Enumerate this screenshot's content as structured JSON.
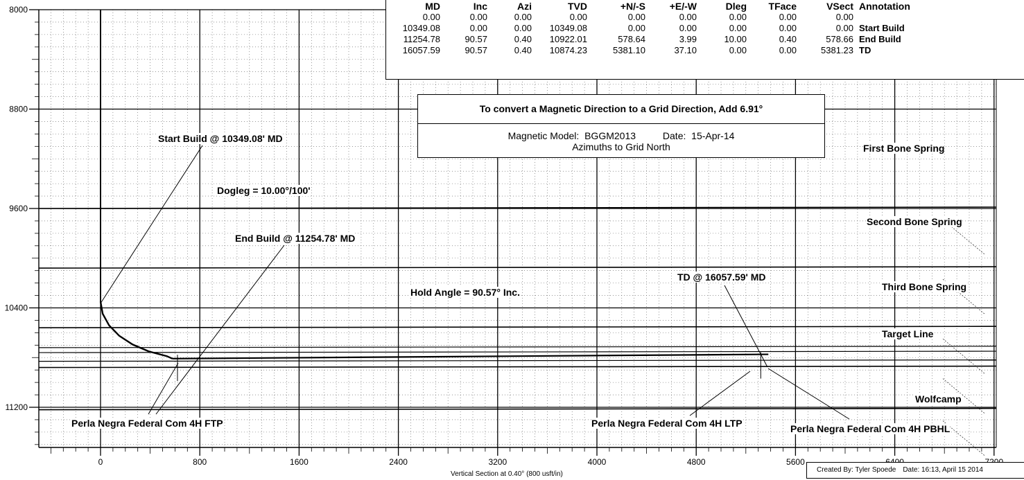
{
  "chart_data": {
    "type": "line",
    "xlabel": "Vertical Section at 0.40° (800 usft/in)",
    "ylabel": "",
    "xlim": [
      -800,
      7400
    ],
    "ylim": [
      8000,
      11500
    ],
    "x_ticks": [
      0,
      800,
      1600,
      2400,
      3200,
      4000,
      4800,
      5600,
      6400,
      7200
    ],
    "y_ticks": [
      8000,
      8800,
      9600,
      10400,
      11200
    ],
    "y_inverted": true,
    "grid": true,
    "series": [
      {
        "values": [
          {
            "x": 0,
            "y": 10349.08
          },
          {
            "x": 17.5,
            "y": 10447.5
          },
          {
            "x": 68.6,
            "y": 10540.4
          },
          {
            "x": 150.3,
            "y": 10624.1
          },
          {
            "x": 258.9,
            "y": 10695.1
          },
          {
            "x": 389.2,
            "y": 10750.6
          },
          {
            "x": 534.8,
            "y": 10788.5
          },
          {
            "x": 578.66,
            "y": 10922.01
          }
        ]
      },
      {
        "values": [
          {
            "x": 578.66,
            "y": 10922.01
          },
          {
            "x": 5381.23,
            "y": 10874.23
          }
        ]
      }
    ],
    "formations": [
      {
        "name": "First Bone Spring",
        "tvd": 9600
      },
      {
        "name": "Second Bone Spring",
        "tvd": 10080
      },
      {
        "name": "Third Bone Spring",
        "tvd": 10560
      },
      {
        "name": "Target Line",
        "tvd": 10880
      },
      {
        "name": "Wolfcamp",
        "tvd": 11220
      }
    ],
    "annotations": [
      {
        "text": "Start Build @ 10349.08' MD",
        "x": 0,
        "y": 10349.08
      },
      {
        "text": "Dogleg = 10.00°/100'"
      },
      {
        "text": "End Build @ 11254.78' MD",
        "x": 578.66,
        "y": 10922.01
      },
      {
        "text": "Hold Angle = 90.57° Inc."
      },
      {
        "text": "TD @ 16057.59' MD",
        "x": 5381.23,
        "y": 10874.23
      },
      {
        "text": "Perla Negra Federal Com 4H FTP",
        "x": 620,
        "y": 10900
      },
      {
        "text": "Perla Negra Federal Com 4H LTP",
        "x": 5320,
        "y": 10880
      },
      {
        "text": "Perla Negra Federal Com 4H PBHL",
        "x": 5381.23,
        "y": 10874.23
      }
    ]
  },
  "survey": {
    "headers": [
      "MD",
      "Inc",
      "Azi",
      "TVD",
      "+N/-S",
      "+E/-W",
      "Dleg",
      "TFace",
      "VSect",
      "Annotation"
    ],
    "rows": [
      [
        "0.00",
        "0.00",
        "0.00",
        "0.00",
        "0.00",
        "0.00",
        "0.00",
        "0.00",
        "0.00",
        ""
      ],
      [
        "10349.08",
        "0.00",
        "0.00",
        "10349.08",
        "0.00",
        "0.00",
        "0.00",
        "0.00",
        "0.00",
        "Start Build"
      ],
      [
        "11254.78",
        "90.57",
        "0.40",
        "10922.01",
        "578.64",
        "3.99",
        "10.00",
        "0.40",
        "578.66",
        "End Build"
      ],
      [
        "16057.59",
        "90.57",
        "0.40",
        "10874.23",
        "5381.10",
        "37.10",
        "0.00",
        "0.00",
        "5381.23",
        "TD"
      ]
    ]
  },
  "magnetic": {
    "title": "To convert a Magnetic Direction to a Grid Direction, Add 6.91°",
    "model_line": "Magnetic Model:  BGGM2013          Date:  15-Apr-14",
    "azimuth_line": "Azimuths to Grid North"
  },
  "credit": {
    "created": "Created By: Tyler Spoede",
    "date": "Date: 16:13, April 15 2014"
  }
}
